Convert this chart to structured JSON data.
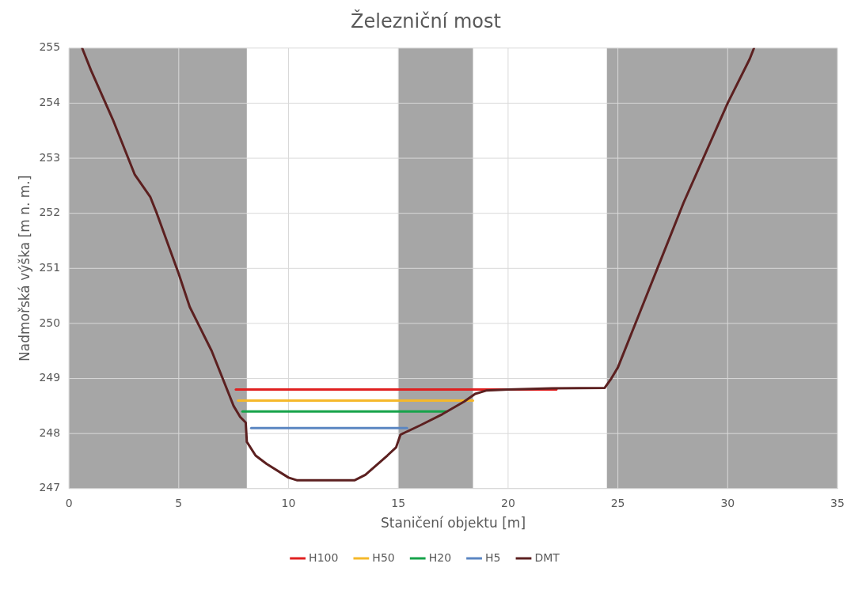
{
  "chart_data": {
    "type": "line",
    "title": "Železniční most",
    "xlabel": "Staničení objektu [m]",
    "ylabel": "Nadmořská výška [m n. m.]",
    "xlim": [
      0,
      35
    ],
    "xticks": [
      0,
      5,
      10,
      15,
      20,
      25,
      30,
      35
    ],
    "ylim": [
      247,
      255
    ],
    "yticks": [
      247,
      248,
      249,
      250,
      251,
      252,
      253,
      254,
      255
    ],
    "grid": true,
    "legend": "bottom",
    "marker": "none",
    "line_style": "solid",
    "bands": [
      {
        "axis": "x",
        "from": 0,
        "to": 8.1,
        "color": "#a6a6a6"
      },
      {
        "axis": "x",
        "from": 15,
        "to": 18.4,
        "color": "#a6a6a6"
      },
      {
        "axis": "x",
        "from": 24.5,
        "to": 35,
        "color": "#a6a6a6"
      }
    ],
    "series": [
      {
        "name": "H100",
        "color": "#e02020",
        "x": [
          7.6,
          22.2
        ],
        "values": [
          248.8,
          248.8
        ]
      },
      {
        "name": "H50",
        "color": "#f5b82a",
        "x": [
          7.7,
          18.4
        ],
        "values": [
          248.6,
          248.6
        ]
      },
      {
        "name": "H20",
        "color": "#16a34a",
        "x": [
          7.9,
          17.2
        ],
        "values": [
          248.4,
          248.4
        ]
      },
      {
        "name": "H5",
        "color": "#5b86c2",
        "x": [
          8.3,
          15.4
        ],
        "values": [
          248.1,
          248.1
        ]
      },
      {
        "name": "DMT",
        "color": "#5c2020",
        "x": [
          0.6,
          1,
          2,
          3,
          3.7,
          4,
          5,
          5.5,
          6,
          6.5,
          7,
          7.5,
          7.8,
          8.05,
          8.1,
          8.5,
          9,
          10,
          10.4,
          13,
          13.5,
          14.5,
          14.9,
          15.1,
          16,
          17,
          18,
          18.5,
          19,
          20,
          22,
          24.4,
          24.7,
          25,
          26,
          27,
          28,
          29,
          30,
          31,
          31.2
        ],
        "values": [
          255,
          254.6,
          253.7,
          252.7,
          252.3,
          252,
          250.9,
          250.3,
          249.9,
          249.5,
          249,
          248.5,
          248.3,
          248.2,
          247.85,
          247.6,
          247.45,
          247.2,
          247.15,
          247.15,
          247.25,
          247.6,
          247.75,
          247.98,
          248.15,
          248.35,
          248.58,
          248.72,
          248.78,
          248.8,
          248.82,
          248.83,
          249,
          249.2,
          250.2,
          251.2,
          252.2,
          253.1,
          254,
          254.8,
          255
        ]
      }
    ]
  }
}
